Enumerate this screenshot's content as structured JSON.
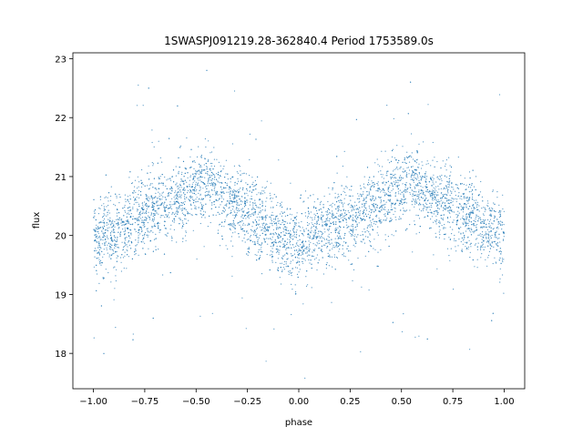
{
  "chart_data": {
    "type": "scatter",
    "title": "1SWASPJ091219.28-362840.4 Period 1753589.0s",
    "xlabel": "phase",
    "ylabel": "flux",
    "xlim": [
      -1.1,
      1.1
    ],
    "ylim": [
      17.4,
      23.1
    ],
    "xticks": [
      -1.0,
      -0.75,
      -0.5,
      -0.25,
      0.0,
      0.25,
      0.5,
      0.75,
      1.0
    ],
    "xtick_labels": [
      "−1.00",
      "−0.75",
      "−0.50",
      "−0.25",
      "0.00",
      "0.25",
      "0.50",
      "0.75",
      "1.00"
    ],
    "yticks": [
      18,
      19,
      20,
      21,
      22,
      23
    ],
    "ytick_labels": [
      "18",
      "19",
      "20",
      "21",
      "22",
      "23"
    ],
    "grid": false,
    "legend": "none",
    "point_color": "#1f77b4",
    "series": [
      {
        "sampled_points": [
          [
            -1.0,
            20.1
          ],
          [
            -0.98,
            19.8
          ],
          [
            -0.95,
            20.0
          ],
          [
            -0.92,
            20.2
          ],
          [
            -0.9,
            19.9
          ],
          [
            -0.87,
            20.1
          ],
          [
            -0.85,
            20.0
          ],
          [
            -0.82,
            20.3
          ],
          [
            -0.8,
            20.2
          ],
          [
            -0.77,
            20.4
          ],
          [
            -0.75,
            20.3
          ],
          [
            -0.72,
            20.5
          ],
          [
            -0.7,
            20.4
          ],
          [
            -0.67,
            20.6
          ],
          [
            -0.65,
            20.5
          ],
          [
            -0.62,
            20.5
          ],
          [
            -0.6,
            20.6
          ],
          [
            -0.57,
            20.7
          ],
          [
            -0.55,
            20.6
          ],
          [
            -0.52,
            20.8
          ],
          [
            -0.5,
            20.7
          ],
          [
            -0.47,
            20.8
          ],
          [
            -0.45,
            20.9
          ],
          [
            -0.42,
            20.8
          ],
          [
            -0.4,
            20.7
          ],
          [
            -0.37,
            20.6
          ],
          [
            -0.35,
            20.6
          ],
          [
            -0.32,
            20.5
          ],
          [
            -0.3,
            20.5
          ],
          [
            -0.27,
            20.4
          ],
          [
            -0.25,
            20.3
          ],
          [
            -0.22,
            20.3
          ],
          [
            -0.2,
            20.2
          ],
          [
            -0.17,
            20.2
          ],
          [
            -0.15,
            20.1
          ],
          [
            -0.12,
            20.1
          ],
          [
            -0.1,
            20.0
          ],
          [
            -0.07,
            19.9
          ],
          [
            -0.05,
            19.9
          ],
          [
            -0.02,
            19.8
          ],
          [
            0.0,
            19.9
          ],
          [
            0.02,
            19.9
          ],
          [
            0.05,
            20.0
          ],
          [
            0.07,
            20.0
          ],
          [
            0.1,
            20.0
          ],
          [
            0.12,
            20.1
          ],
          [
            0.15,
            20.1
          ],
          [
            0.17,
            20.2
          ],
          [
            0.2,
            20.2
          ],
          [
            0.22,
            20.3
          ],
          [
            0.25,
            20.3
          ],
          [
            0.27,
            20.3
          ],
          [
            0.3,
            20.4
          ],
          [
            0.32,
            20.4
          ],
          [
            0.35,
            20.5
          ],
          [
            0.37,
            20.5
          ],
          [
            0.4,
            20.6
          ],
          [
            0.42,
            20.6
          ],
          [
            0.45,
            20.7
          ],
          [
            0.47,
            20.8
          ],
          [
            0.5,
            20.8
          ],
          [
            0.52,
            20.9
          ],
          [
            0.55,
            20.9
          ],
          [
            0.57,
            20.8
          ],
          [
            0.6,
            20.8
          ],
          [
            0.62,
            20.7
          ],
          [
            0.65,
            20.7
          ],
          [
            0.67,
            20.6
          ],
          [
            0.7,
            20.6
          ],
          [
            0.72,
            20.5
          ],
          [
            0.75,
            20.5
          ],
          [
            0.77,
            20.4
          ],
          [
            0.8,
            20.4
          ],
          [
            0.82,
            20.3
          ],
          [
            0.85,
            20.3
          ],
          [
            0.87,
            20.2
          ],
          [
            0.9,
            20.2
          ],
          [
            0.92,
            20.1
          ],
          [
            0.95,
            20.1
          ],
          [
            0.97,
            20.0
          ],
          [
            1.0,
            20.0
          ]
        ]
      }
    ]
  }
}
